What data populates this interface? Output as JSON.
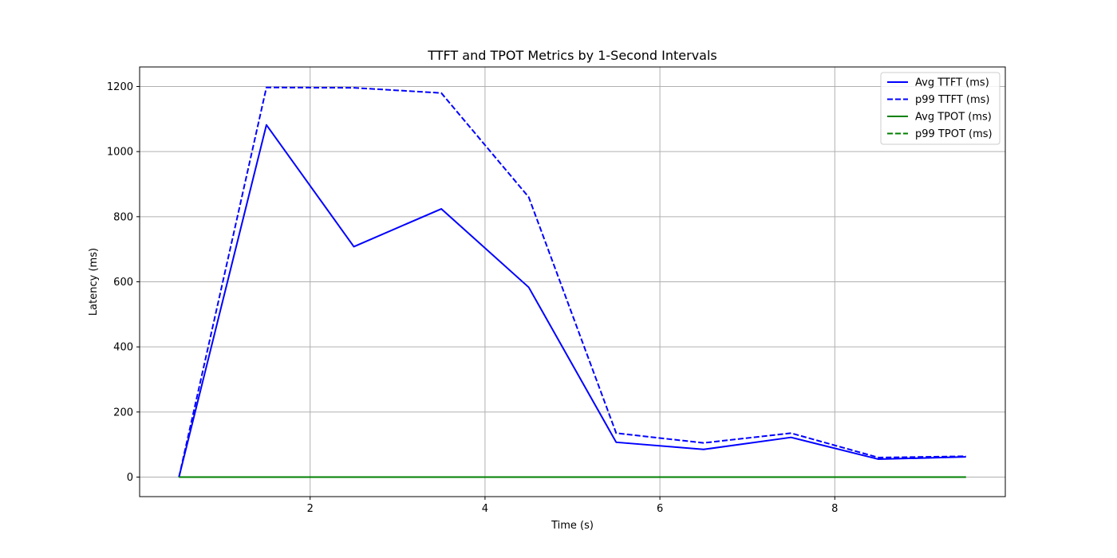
{
  "chart_data": {
    "type": "line",
    "title": "TTFT and TPOT Metrics by 1-Second Intervals",
    "xlabel": "Time (s)",
    "ylabel": "Latency (ms)",
    "xlim": [
      0.05,
      9.95
    ],
    "ylim": [
      -60,
      1260
    ],
    "xticks": [
      2,
      4,
      6,
      8
    ],
    "yticks": [
      0,
      200,
      400,
      600,
      800,
      1000,
      1200
    ],
    "xtick_labels": [
      "2",
      "4",
      "6",
      "8"
    ],
    "ytick_labels": [
      "0",
      "200",
      "400",
      "600",
      "800",
      "1000",
      "1200"
    ],
    "grid": true,
    "legend_position": "top-right",
    "x": [
      0.5,
      1.5,
      2.5,
      3.5,
      4.5,
      5.5,
      6.5,
      7.5,
      8.5,
      9.5
    ],
    "series": [
      {
        "name": "Avg TTFT (ms)",
        "color": "#0000ff",
        "style": "solid",
        "values": [
          0,
          1082,
          708,
          824,
          583,
          107,
          85,
          122,
          55,
          62
        ]
      },
      {
        "name": "p99 TTFT (ms)",
        "color": "#0000ff",
        "style": "dashed",
        "values": [
          0,
          1197,
          1196,
          1180,
          860,
          135,
          105,
          135,
          60,
          64
        ]
      },
      {
        "name": "Avg TPOT (ms)",
        "color": "#008000",
        "style": "solid",
        "values": [
          0,
          0,
          0,
          0,
          0,
          0,
          0,
          0,
          0,
          0
        ]
      },
      {
        "name": "p99 TPOT (ms)",
        "color": "#008000",
        "style": "dashed",
        "values": [
          0,
          0,
          0,
          0,
          0,
          0,
          0,
          0,
          0,
          0
        ]
      }
    ]
  }
}
